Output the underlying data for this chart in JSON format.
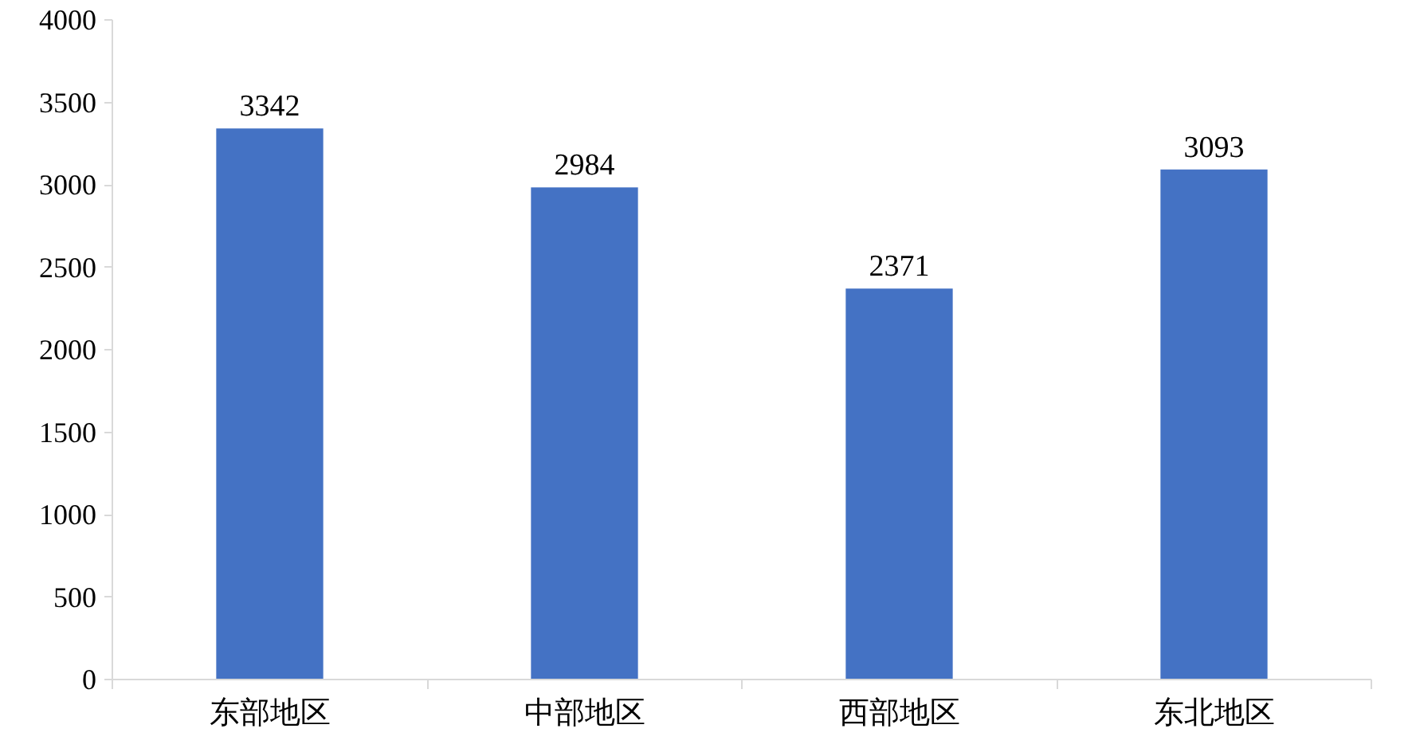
{
  "chart_data": {
    "type": "bar",
    "categories": [
      "东部地区",
      "中部地区",
      "西部地区",
      "东北地区"
    ],
    "values": [
      3342,
      2984,
      2371,
      3093
    ],
    "color": "#4472c4",
    "ylim": [
      0,
      4000
    ],
    "yticks": [
      0,
      500,
      1000,
      1500,
      2000,
      2500,
      3000,
      3500,
      4000
    ],
    "data_labels": true
  }
}
